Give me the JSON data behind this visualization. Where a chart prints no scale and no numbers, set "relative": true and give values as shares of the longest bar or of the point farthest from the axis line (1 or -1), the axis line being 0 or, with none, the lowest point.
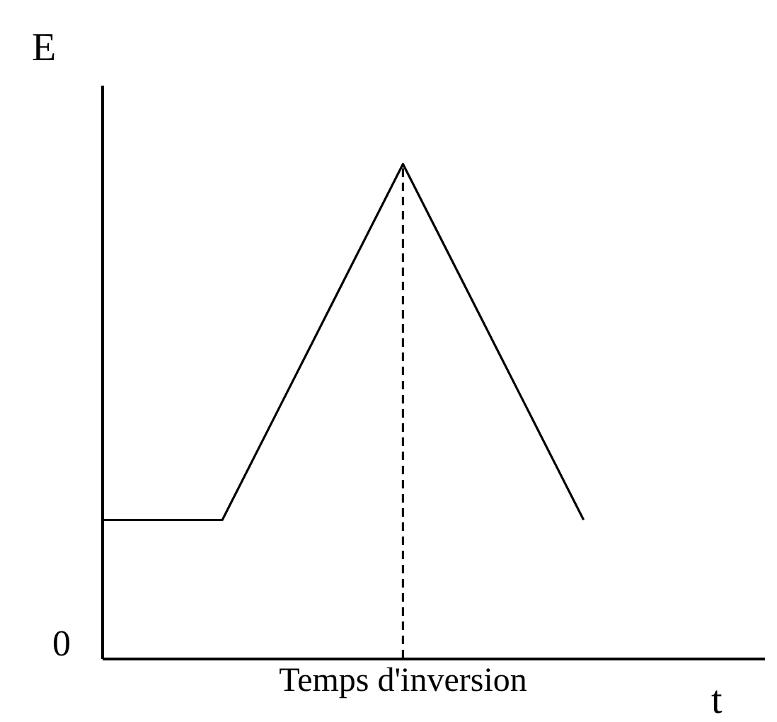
{
  "chart_data": {
    "type": "line",
    "xlabel": "t",
    "ylabel": "E",
    "relative": true,
    "categories": [
      null,
      null,
      null,
      null,
      null,
      null,
      null,
      null,
      null,
      null,
      null,
      null
    ],
    "series": [
      {
        "color": "#000000",
        "values": [
          0.28,
          0.28,
          0.28,
          0.52,
          0.76,
          1,
          0.76,
          0.52,
          0.28,
          null,
          null,
          null
        ]
      }
    ],
    "annotations": [
      "0",
      {
        "text": "Temps d'inversion"
      }
    ]
  }
}
